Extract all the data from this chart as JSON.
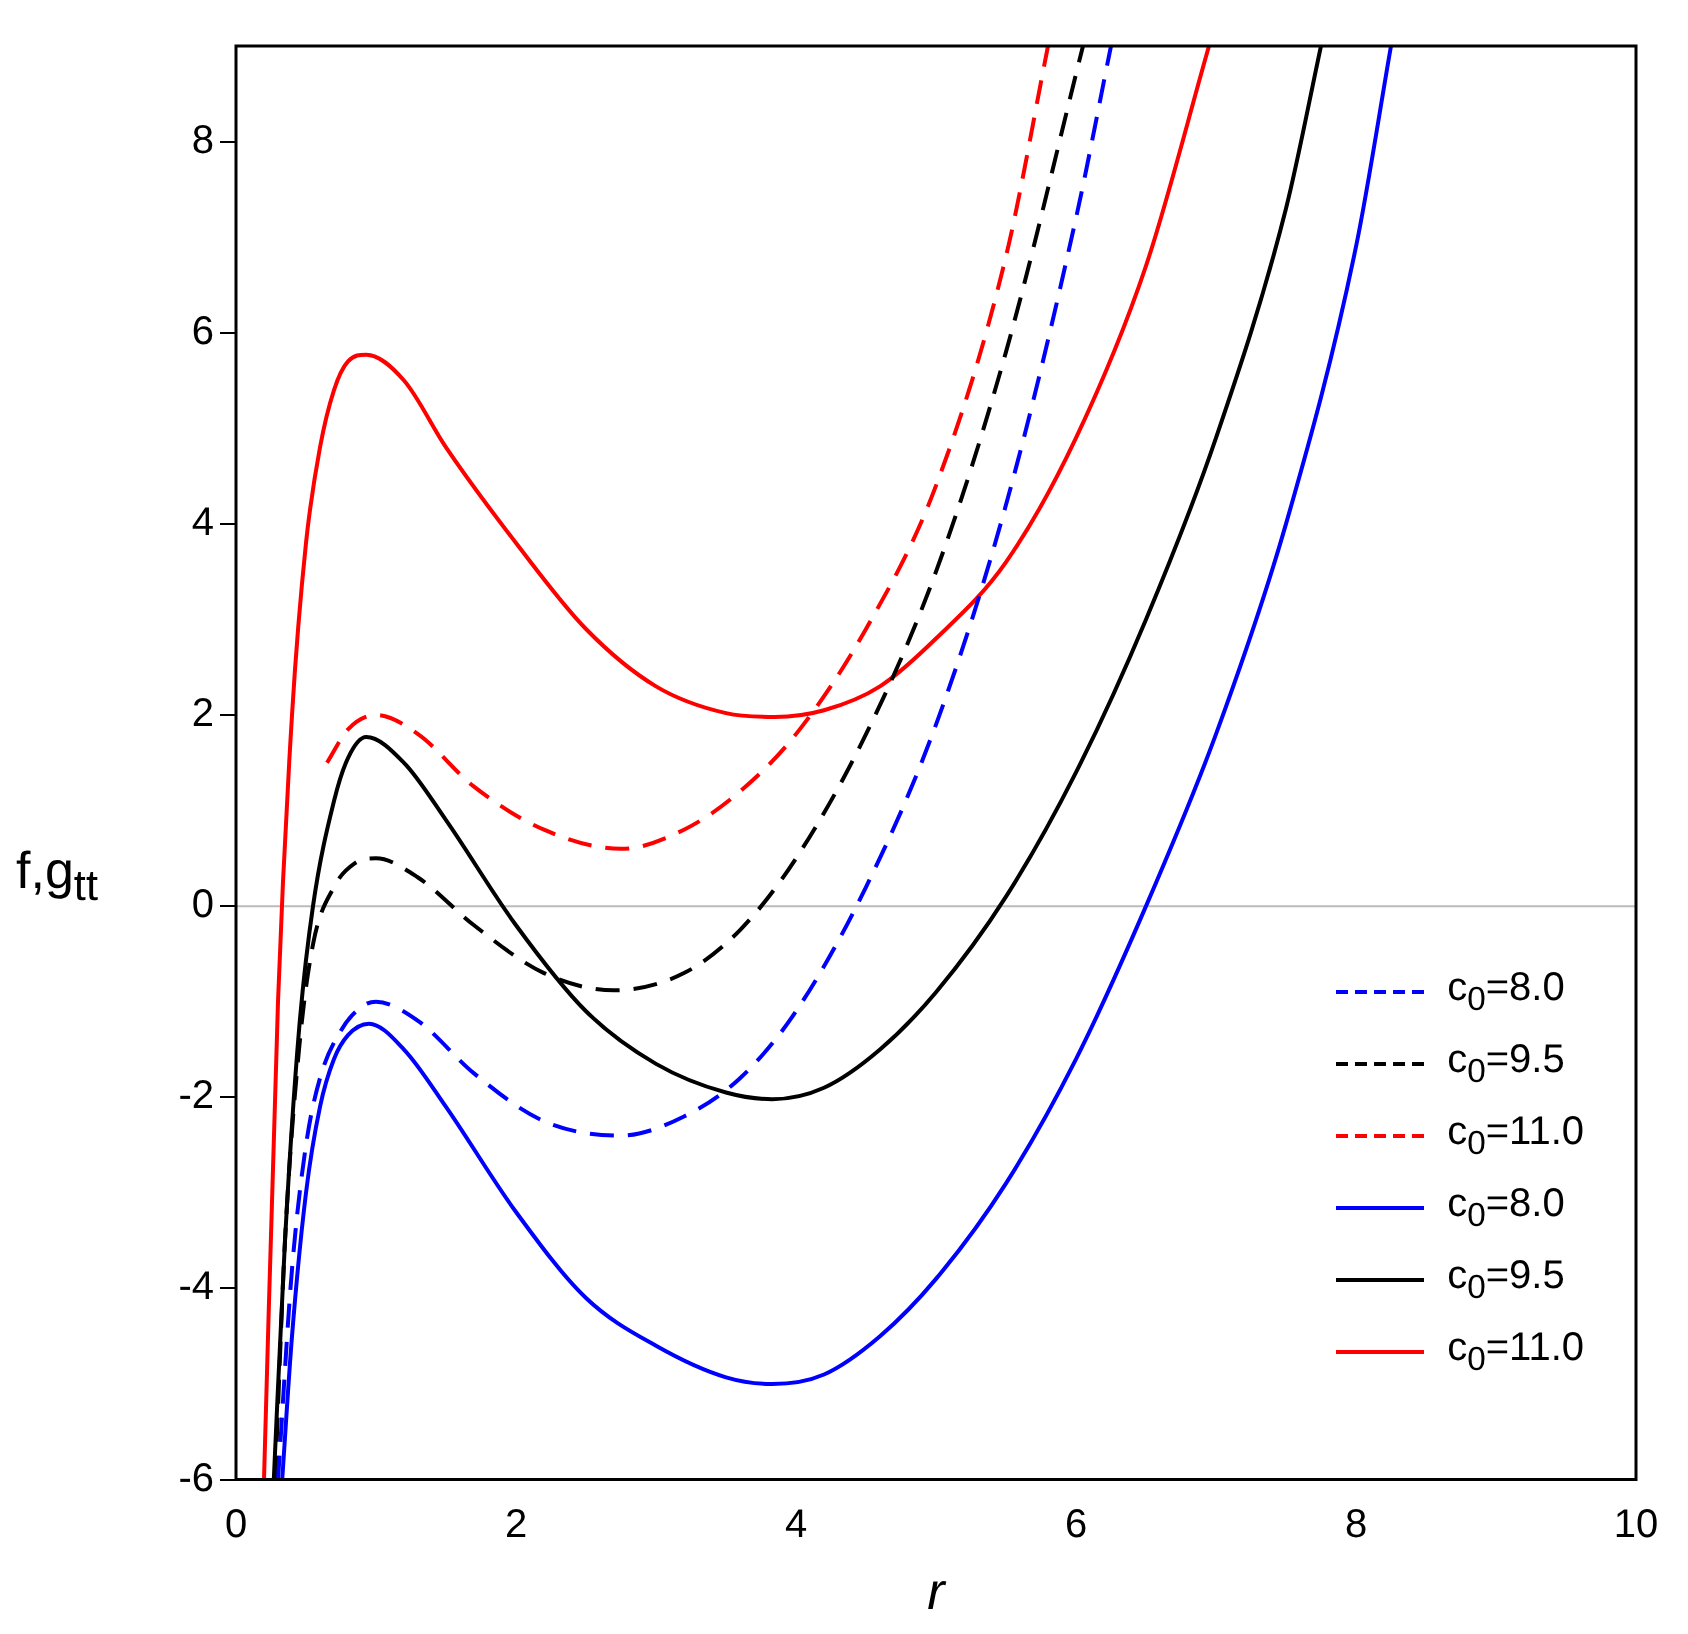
{
  "chart_data": {
    "type": "line",
    "xlabel": "r",
    "ylabel": "f,g$_{tt}$",
    "xlim": [
      0,
      10
    ],
    "xticks": [
      0,
      2,
      4,
      6,
      8,
      10
    ],
    "ylim": [
      -6,
      9
    ],
    "yticks": [
      -6,
      -4,
      -2,
      0,
      2,
      4,
      6,
      8
    ],
    "grid": false,
    "legend": "right",
    "marker": "none",
    "ref_lines": [
      {
        "axis": "y",
        "value": 0,
        "color": "#bbbbbb"
      }
    ],
    "series": [
      {
        "name": "c$_{0}$=8.0",
        "color": "#0000ff",
        "line_style": "dashed",
        "x": [
          0.3,
          0.4,
          0.5,
          0.6,
          0.75,
          0.9,
          1,
          1.3,
          1.7,
          2.2,
          2.75,
          3.2,
          3.6,
          4,
          4.5,
          5,
          5.5,
          6,
          6.25
        ],
        "values": [
          -6,
          -3.8,
          -2.5,
          -1.8,
          -1.3,
          -1.05,
          -1,
          -1.2,
          -1.75,
          -2.25,
          -2.4,
          -2.2,
          -1.8,
          -1.1,
          0.2,
          1.9,
          4.2,
          7.2,
          9
        ]
      },
      {
        "name": "c$_{0}$=9.5",
        "color": "#000000",
        "line_style": "dashed",
        "x": [
          0.28,
          0.35,
          0.45,
          0.55,
          0.7,
          0.85,
          1,
          1.3,
          1.7,
          2.2,
          2.7,
          3.2,
          3.6,
          4,
          4.5,
          5,
          5.5,
          6.05
        ],
        "values": [
          -6,
          -3.5,
          -1.5,
          -0.4,
          0.2,
          0.45,
          0.5,
          0.3,
          -0.2,
          -0.7,
          -0.88,
          -0.7,
          -0.25,
          0.5,
          1.8,
          3.5,
          5.8,
          9
        ]
      },
      {
        "name": "c$_{0}$=11.0",
        "color": "#ff0000",
        "line_style": "dashed",
        "x": [
          0.65,
          0.8,
          1,
          1.3,
          1.7,
          2.2,
          2.75,
          3.2,
          3.6,
          4,
          4.5,
          5,
          5.5,
          5.8
        ],
        "values": [
          1.5,
          1.85,
          2,
          1.8,
          1.25,
          0.8,
          0.6,
          0.8,
          1.2,
          1.8,
          2.9,
          4.4,
          6.8,
          9
        ]
      },
      {
        "name": "c$_{0}$=8.0",
        "color": "#0000ff",
        "line_style": "solid",
        "x": [
          0.33,
          0.4,
          0.5,
          0.6,
          0.7,
          0.8,
          0.95,
          1.2,
          1.5,
          2,
          2.5,
          3,
          3.5,
          3.83,
          4.2,
          4.6,
          5,
          5.5,
          6,
          6.5,
          7,
          7.5,
          8,
          8.25
        ],
        "values": [
          -6,
          -4.5,
          -3,
          -2.1,
          -1.6,
          -1.35,
          -1.23,
          -1.5,
          -2.1,
          -3.2,
          -4.1,
          -4.6,
          -4.93,
          -5,
          -4.9,
          -4.5,
          -3.9,
          -2.9,
          -1.6,
          0,
          1.8,
          4,
          6.9,
          9
        ]
      },
      {
        "name": "c$_{0}$=9.5",
        "color": "#000000",
        "line_style": "solid",
        "x": [
          0.27,
          0.35,
          0.45,
          0.55,
          0.7,
          0.8,
          0.93,
          1.2,
          1.5,
          2,
          2.5,
          3,
          3.5,
          3.83,
          4.2,
          4.6,
          5,
          5.5,
          6,
          6.5,
          7,
          7.5,
          7.75
        ],
        "values": [
          -6,
          -3.5,
          -1.3,
          0,
          1.1,
          1.55,
          1.77,
          1.5,
          0.9,
          -0.2,
          -1.1,
          -1.65,
          -1.95,
          -2.02,
          -1.9,
          -1.5,
          -0.9,
          0.1,
          1.4,
          3,
          4.9,
          7.3,
          9
        ]
      },
      {
        "name": "c$_{0}$=11.0",
        "color": "#ff0000",
        "line_style": "solid",
        "x": [
          0.2,
          0.3,
          0.4,
          0.5,
          0.6,
          0.7,
          0.8,
          0.93,
          1.2,
          1.5,
          2,
          2.5,
          3,
          3.5,
          3.85,
          4.2,
          4.6,
          5,
          5.5,
          6,
          6.5,
          6.95
        ],
        "values": [
          -6,
          -1,
          2,
          3.8,
          4.8,
          5.4,
          5.7,
          5.77,
          5.5,
          4.8,
          3.8,
          2.9,
          2.3,
          2.02,
          1.98,
          2.05,
          2.3,
          2.8,
          3.6,
          4.9,
          6.7,
          9
        ]
      }
    ]
  }
}
